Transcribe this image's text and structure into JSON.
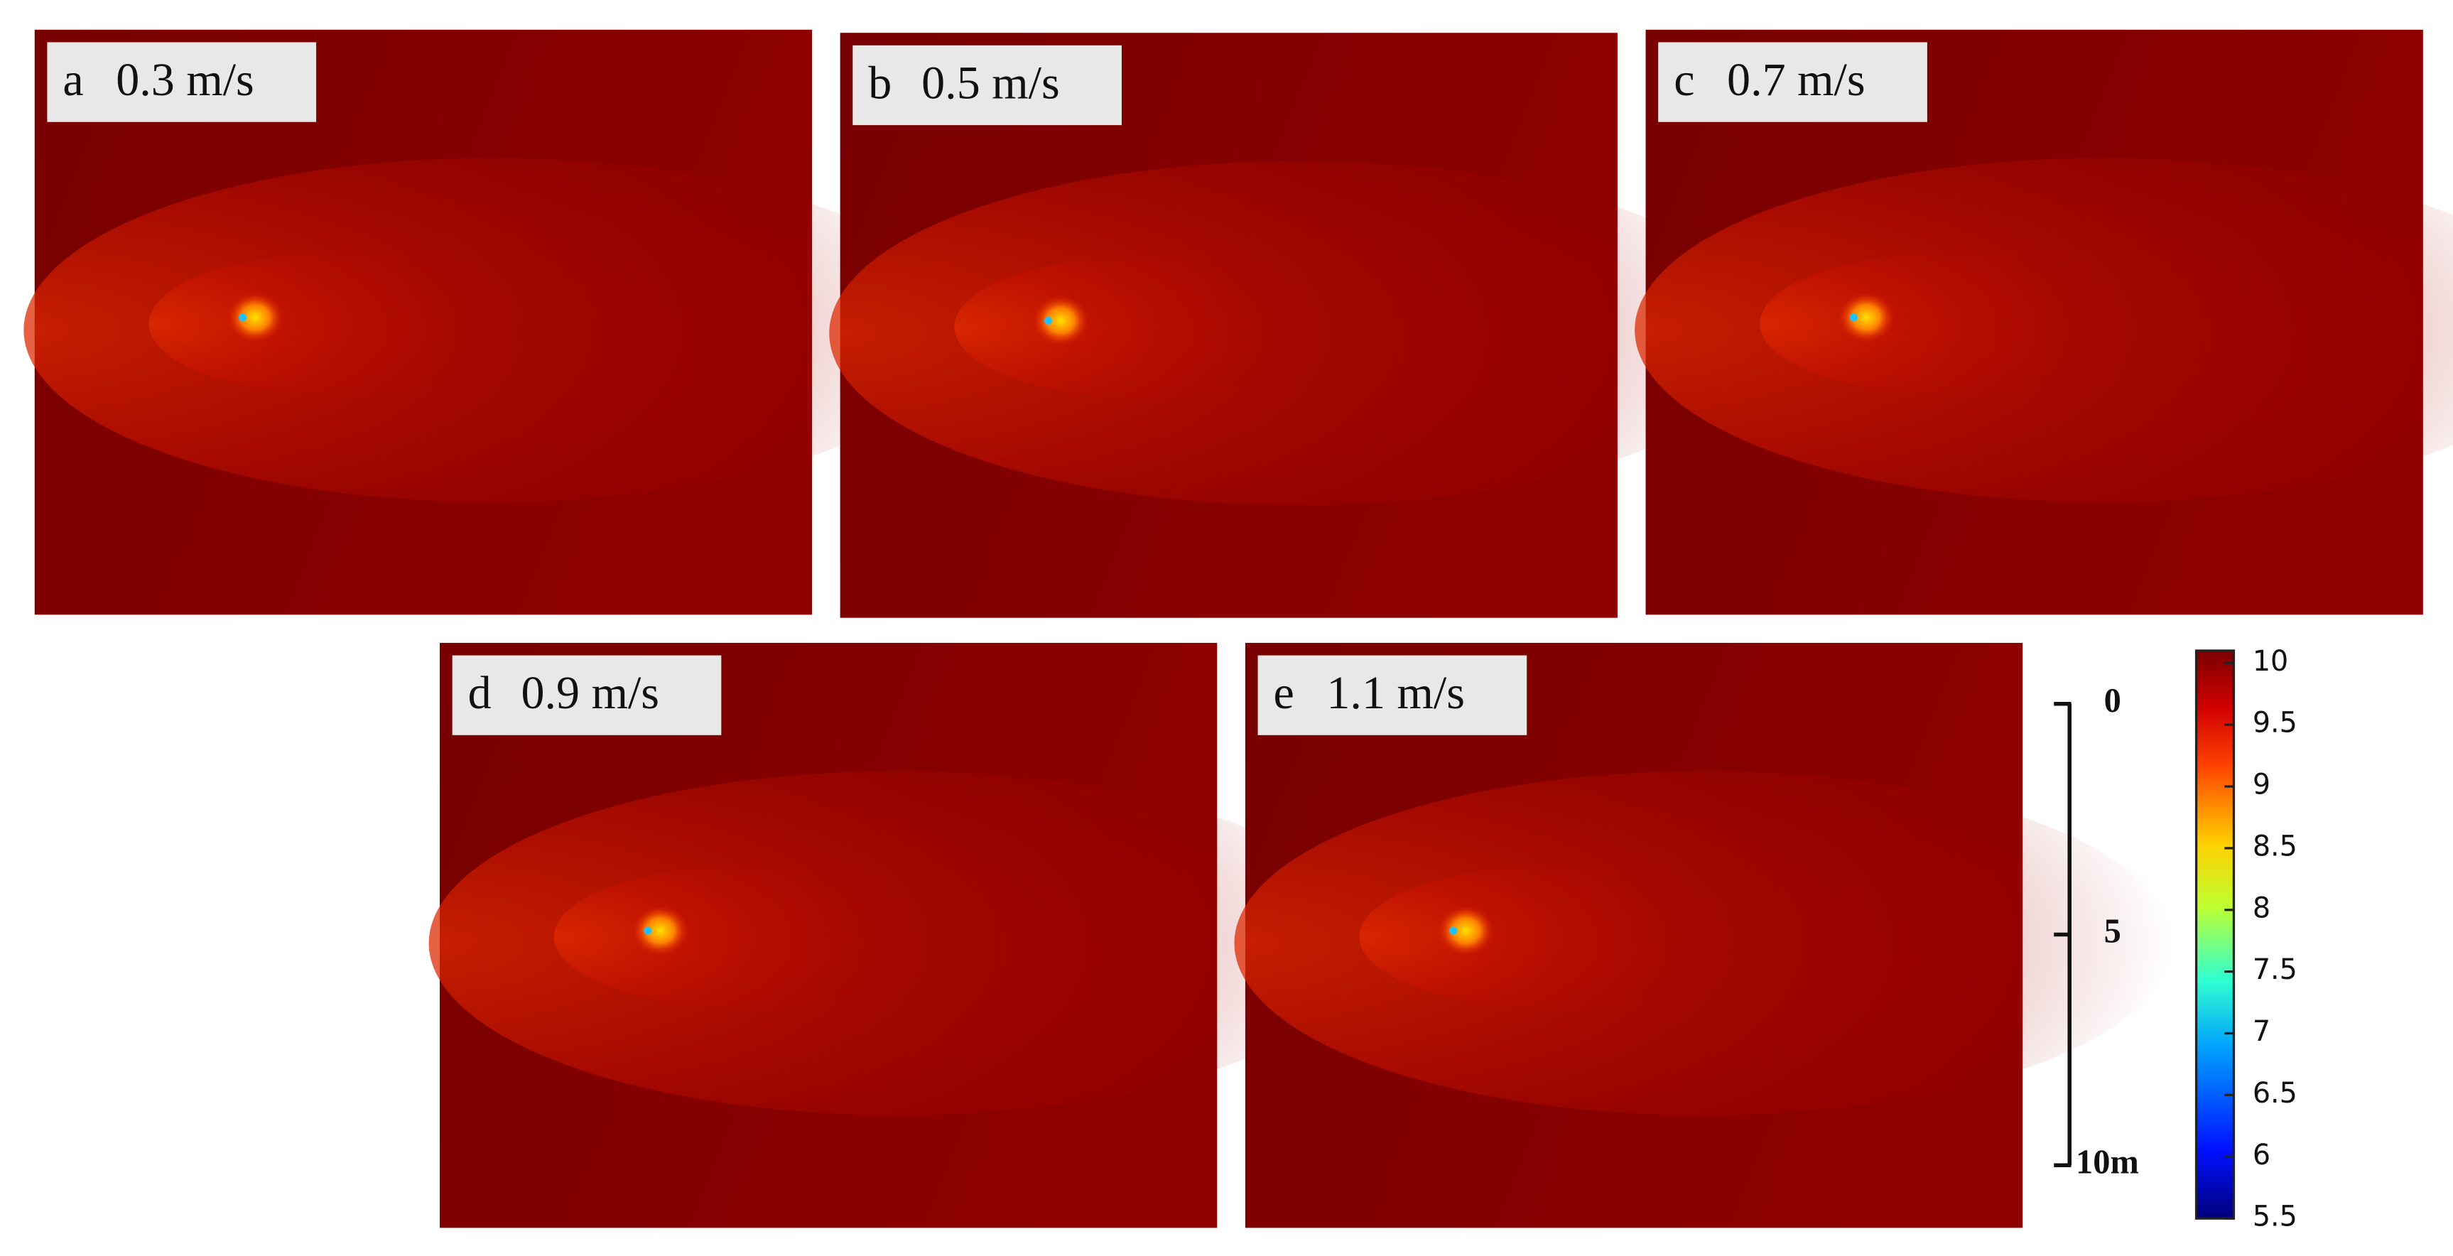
{
  "chart_data": {
    "type": "heatmap",
    "panels": [
      {
        "letter": "a",
        "title": "0.3 m/s"
      },
      {
        "letter": "b",
        "title": "0.5 m/s"
      },
      {
        "letter": "c",
        "title": "0.7 m/s"
      },
      {
        "letter": "d",
        "title": "0.9 m/s"
      },
      {
        "letter": "e",
        "title": "1.1 m/s"
      }
    ],
    "colorbar": {
      "ylim": [
        5.5,
        10.1
      ],
      "yticks": [
        10,
        9.5,
        9,
        8.5,
        8,
        7.5,
        7,
        6.5,
        6,
        5.5
      ]
    },
    "scale_bar": {
      "ylim": [
        0,
        10
      ],
      "yticks": [
        0,
        5,
        {
          "value": 10,
          "label": "10m"
        }
      ]
    }
  }
}
